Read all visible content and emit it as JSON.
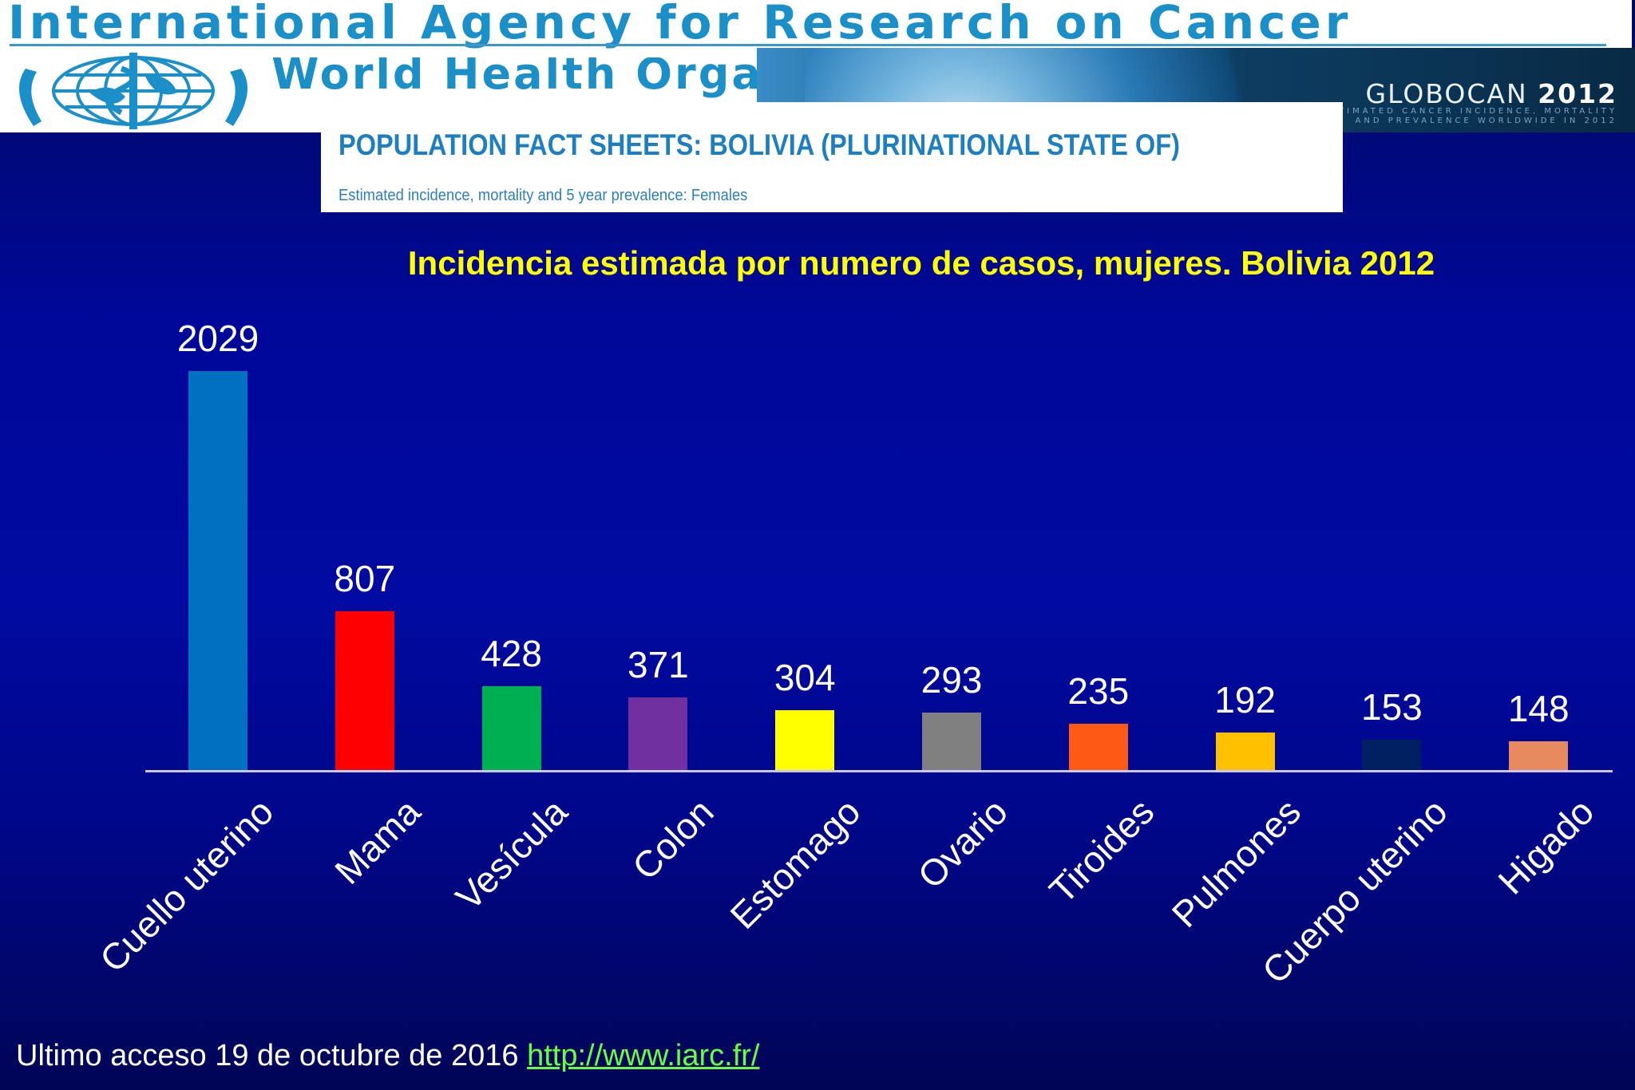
{
  "header": {
    "iarc_title": "International Agency for Research on Cancer",
    "who_name": "World Health Organization",
    "globocan_brand": "GLOBOCAN",
    "globocan_year": "2012",
    "globocan_sub_line1": "ESTIMATED CANCER INCIDENCE, MORTALITY",
    "globocan_sub_line2": "AND PREVALENCE WORLDWIDE IN 2012"
  },
  "factsheet": {
    "title": "POPULATION FACT SHEETS: BOLIVIA (PLURINATIONAL STATE OF)",
    "subtitle": "Estimated incidence, mortality and 5 year prevalence: Females"
  },
  "chart_data": {
    "type": "bar",
    "title": "Incidencia estimada por numero de casos, mujeres. Bolivia 2012",
    "xlabel": "",
    "ylabel": "",
    "categories": [
      "Cuello uterino",
      "Mama",
      "Vesícula",
      "Colon",
      "Estomago",
      "Ovario",
      "Tiroides",
      "Pulmones",
      "Cuerpo uterino",
      "Higado"
    ],
    "values": [
      2029,
      807,
      428,
      371,
      304,
      293,
      235,
      192,
      153,
      148
    ],
    "colors": [
      "#0070c0",
      "#ff0000",
      "#00b050",
      "#7030a0",
      "#ffff00",
      "#808080",
      "#ff5a14",
      "#ffc000",
      "#002060",
      "#e88a60"
    ],
    "ylim": [
      0,
      2029
    ],
    "grid": false,
    "legend": "none",
    "data_labels": true
  },
  "footer": {
    "text": "Ultimo acceso 19 de octubre de 2016",
    "link_text": "http://www.iarc.fr/"
  }
}
